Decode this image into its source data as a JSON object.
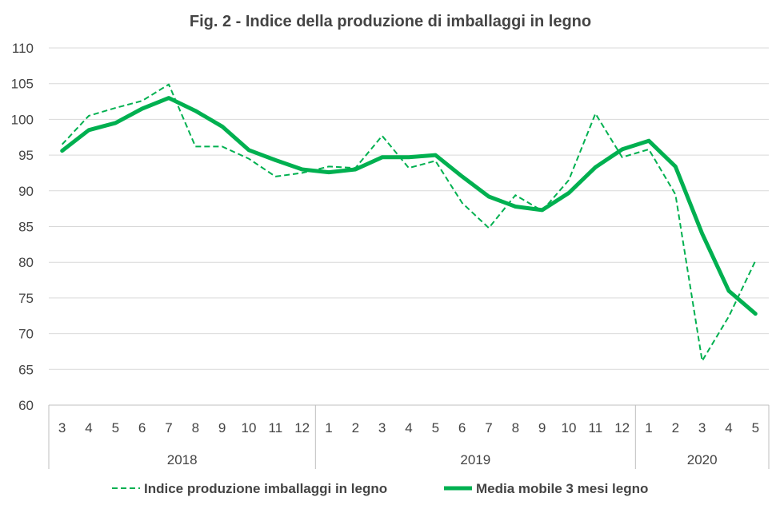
{
  "chart_data": {
    "type": "line",
    "title": "Fig. 2 - Indice della produzione di imballaggi in legno",
    "xlabel": "",
    "ylabel": "",
    "ylim": [
      60,
      110
    ],
    "yticks": [
      "60",
      "65",
      "70",
      "75",
      "80",
      "85",
      "90",
      "95",
      "100",
      "105",
      "110"
    ],
    "grid": true,
    "legend_position": "bottom",
    "categories": [
      "3",
      "4",
      "5",
      "6",
      "7",
      "8",
      "9",
      "10",
      "11",
      "12",
      "1",
      "2",
      "3",
      "4",
      "5",
      "6",
      "7",
      "8",
      "9",
      "10",
      "11",
      "12",
      "1",
      "2",
      "3",
      "4",
      "5"
    ],
    "year_groups": [
      {
        "label": "2018",
        "count": 10
      },
      {
        "label": "2019",
        "count": 12
      },
      {
        "label": "2020",
        "count": 5
      }
    ],
    "series": [
      {
        "name": "Indice produzione imballaggi in legno",
        "style": "dashed",
        "color": "#00b050",
        "values": [
          96.5,
          100.5,
          101.6,
          102.6,
          104.9,
          96.2,
          96.2,
          94.5,
          92.0,
          92.5,
          93.4,
          93.2,
          97.7,
          93.2,
          94.2,
          88.3,
          84.8,
          89.4,
          87.2,
          91.5,
          100.8,
          94.7,
          95.8,
          89.5,
          66.2,
          72.4,
          80.2
        ]
      },
      {
        "name": "Media mobile 3 mesi  legno",
        "style": "solid",
        "color": "#00b050",
        "values": [
          95.6,
          98.5,
          99.5,
          101.5,
          103.0,
          101.2,
          99.0,
          95.7,
          94.3,
          93.0,
          92.6,
          93.0,
          94.7,
          94.7,
          95.0,
          92.0,
          89.2,
          87.8,
          87.3,
          89.7,
          93.3,
          95.8,
          97.0,
          93.4,
          84.0,
          76.0,
          72.8
        ]
      }
    ]
  }
}
